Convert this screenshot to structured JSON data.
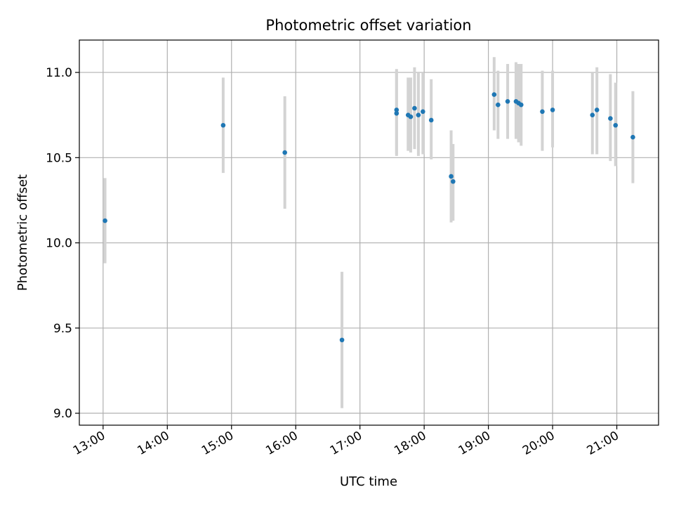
{
  "chart_data": {
    "type": "scatter",
    "title": "Photometric offset variation",
    "xlabel": "UTC time",
    "ylabel": "Photometric offset",
    "x_unit": "UTC hour",
    "xlim": [
      12.63,
      21.65
    ],
    "ylim": [
      8.93,
      11.19
    ],
    "grid": true,
    "legend": "none",
    "x_ticks": [
      13,
      14,
      15,
      16,
      17,
      18,
      19,
      20,
      21
    ],
    "x_tick_labels": [
      "13:00",
      "14:00",
      "15:00",
      "16:00",
      "17:00",
      "18:00",
      "19:00",
      "20:00",
      "21:00"
    ],
    "y_ticks": [
      9.0,
      9.5,
      10.0,
      10.5,
      11.0
    ],
    "y_tick_labels": [
      "9.0",
      "9.5",
      "10.0",
      "10.5",
      "11.0"
    ],
    "colors": {
      "point": "#1f77b4",
      "errorbar": "#d3d3d3",
      "grid": "#b0b0b0"
    },
    "series": [
      {
        "points": [
          {
            "x": 13.03,
            "y": 10.13,
            "ylow": 9.88,
            "yhigh": 10.38
          },
          {
            "x": 14.87,
            "y": 10.69,
            "ylow": 10.41,
            "yhigh": 10.97
          },
          {
            "x": 15.83,
            "y": 10.53,
            "ylow": 10.2,
            "yhigh": 10.86
          },
          {
            "x": 16.72,
            "y": 9.43,
            "ylow": 9.03,
            "yhigh": 9.83
          },
          {
            "x": 17.57,
            "y": 10.78,
            "ylow": 10.52,
            "yhigh": 11.02
          },
          {
            "x": 17.57,
            "y": 10.76,
            "ylow": 10.51,
            "yhigh": 11.01
          },
          {
            "x": 17.75,
            "y": 10.75,
            "ylow": 10.54,
            "yhigh": 10.97
          },
          {
            "x": 17.79,
            "y": 10.74,
            "ylow": 10.53,
            "yhigh": 10.97
          },
          {
            "x": 17.85,
            "y": 10.79,
            "ylow": 10.55,
            "yhigh": 11.03
          },
          {
            "x": 17.91,
            "y": 10.75,
            "ylow": 10.51,
            "yhigh": 11.0
          },
          {
            "x": 17.98,
            "y": 10.77,
            "ylow": 10.52,
            "yhigh": 11.0
          },
          {
            "x": 18.11,
            "y": 10.72,
            "ylow": 10.49,
            "yhigh": 10.96
          },
          {
            "x": 18.42,
            "y": 10.39,
            "ylow": 10.12,
            "yhigh": 10.66
          },
          {
            "x": 18.45,
            "y": 10.36,
            "ylow": 10.13,
            "yhigh": 10.58
          },
          {
            "x": 19.09,
            "y": 10.87,
            "ylow": 10.66,
            "yhigh": 11.09
          },
          {
            "x": 19.15,
            "y": 10.81,
            "ylow": 10.61,
            "yhigh": 11.01
          },
          {
            "x": 19.3,
            "y": 10.83,
            "ylow": 10.61,
            "yhigh": 11.05
          },
          {
            "x": 19.43,
            "y": 10.83,
            "ylow": 10.61,
            "yhigh": 11.06
          },
          {
            "x": 19.47,
            "y": 10.82,
            "ylow": 10.59,
            "yhigh": 11.05
          },
          {
            "x": 19.51,
            "y": 10.81,
            "ylow": 10.57,
            "yhigh": 11.05
          },
          {
            "x": 19.84,
            "y": 10.77,
            "ylow": 10.54,
            "yhigh": 11.01
          },
          {
            "x": 20.0,
            "y": 10.78,
            "ylow": 10.56,
            "yhigh": 11.01
          },
          {
            "x": 20.62,
            "y": 10.75,
            "ylow": 10.52,
            "yhigh": 11.0
          },
          {
            "x": 20.69,
            "y": 10.78,
            "ylow": 10.52,
            "yhigh": 11.03
          },
          {
            "x": 20.9,
            "y": 10.73,
            "ylow": 10.48,
            "yhigh": 10.99
          },
          {
            "x": 20.98,
            "y": 10.69,
            "ylow": 10.45,
            "yhigh": 10.94
          },
          {
            "x": 21.25,
            "y": 10.62,
            "ylow": 10.35,
            "yhigh": 10.89
          }
        ]
      }
    ]
  }
}
